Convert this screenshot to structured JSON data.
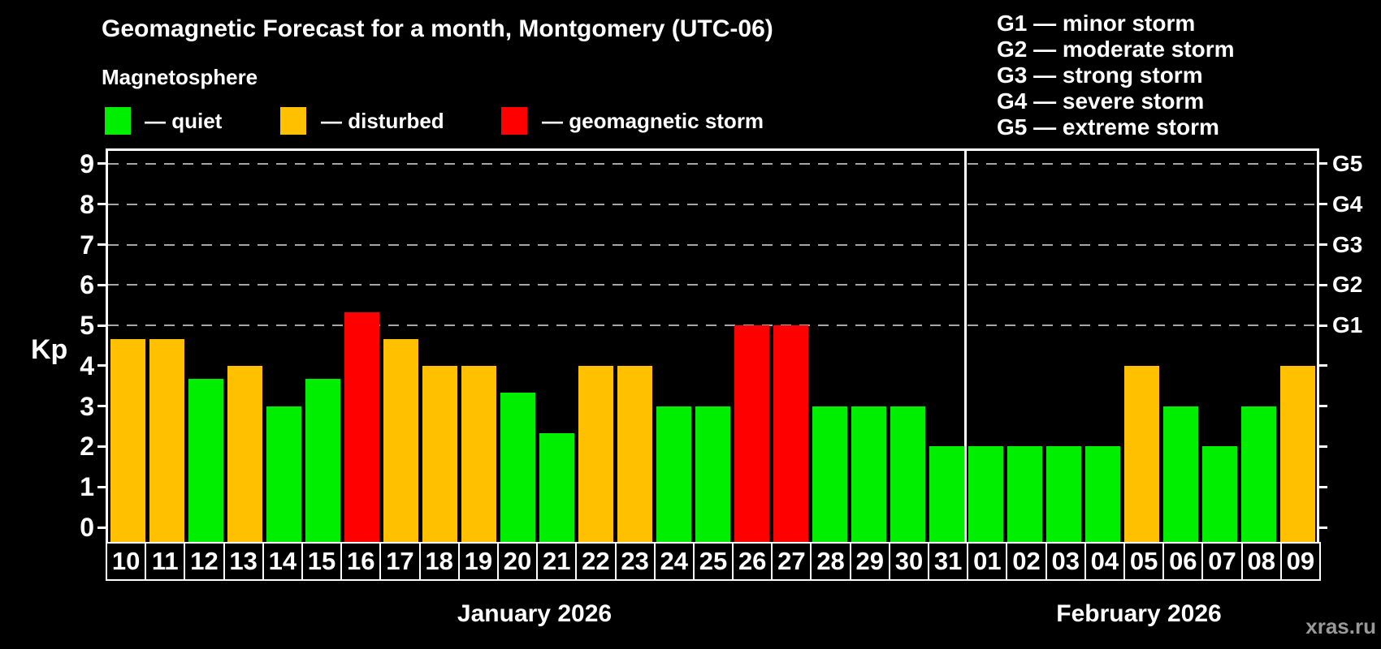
{
  "title": "Geomagnetic Forecast for a month, Montgomery (UTC-06)",
  "subtitle": "Magnetosphere",
  "watermark": "xras.ru",
  "colors": {
    "background": "#000000",
    "text": "#ffffff",
    "grid": "#a6a6a6",
    "axis": "#ffffff",
    "quiet": "#00ee00",
    "disturbed": "#ffc000",
    "storm": "#ff0000",
    "watermark": "#999999"
  },
  "legend": [
    {
      "label": "— quiet",
      "category": "quiet"
    },
    {
      "label": "— disturbed",
      "category": "disturbed"
    },
    {
      "label": "— geomagnetic storm",
      "category": "storm"
    }
  ],
  "g_scale_legend": [
    "G1 — minor storm",
    "G2 — moderate storm",
    "G3 — strong storm",
    "G4 — severe storm",
    "G5 — extreme storm"
  ],
  "chart_data": {
    "type": "bar",
    "title": "Geomagnetic Forecast for a month, Montgomery (UTC-06)",
    "ylabel": "Kp",
    "ylim": [
      -0.37,
      9.4
    ],
    "y_ticks": [
      0,
      1,
      2,
      3,
      4,
      5,
      6,
      7,
      8,
      9
    ],
    "gridlines_at": [
      5,
      6,
      7,
      8,
      9
    ],
    "grid": "dashed",
    "right_axis_labels": [
      {
        "kp": 5,
        "label": "G1"
      },
      {
        "kp": 6,
        "label": "G2"
      },
      {
        "kp": 7,
        "label": "G3"
      },
      {
        "kp": 8,
        "label": "G4"
      },
      {
        "kp": 9,
        "label": "G5"
      }
    ],
    "months": [
      {
        "label": "January 2026",
        "days": 22
      },
      {
        "label": "February 2026",
        "days": 9
      }
    ],
    "bars": [
      {
        "date": "10",
        "value": 4.67,
        "category": "disturbed"
      },
      {
        "date": "11",
        "value": 4.67,
        "category": "disturbed"
      },
      {
        "date": "12",
        "value": 3.67,
        "category": "quiet"
      },
      {
        "date": "13",
        "value": 4.0,
        "category": "disturbed"
      },
      {
        "date": "14",
        "value": 3.0,
        "category": "quiet"
      },
      {
        "date": "15",
        "value": 3.67,
        "category": "quiet"
      },
      {
        "date": "16",
        "value": 5.33,
        "category": "storm"
      },
      {
        "date": "17",
        "value": 4.67,
        "category": "disturbed"
      },
      {
        "date": "18",
        "value": 4.0,
        "category": "disturbed"
      },
      {
        "date": "19",
        "value": 4.0,
        "category": "disturbed"
      },
      {
        "date": "20",
        "value": 3.33,
        "category": "quiet"
      },
      {
        "date": "21",
        "value": 2.33,
        "category": "quiet"
      },
      {
        "date": "22",
        "value": 4.0,
        "category": "disturbed"
      },
      {
        "date": "23",
        "value": 4.0,
        "category": "disturbed"
      },
      {
        "date": "24",
        "value": 3.0,
        "category": "quiet"
      },
      {
        "date": "25",
        "value": 3.0,
        "category": "quiet"
      },
      {
        "date": "26",
        "value": 5.0,
        "category": "storm"
      },
      {
        "date": "27",
        "value": 5.0,
        "category": "storm"
      },
      {
        "date": "28",
        "value": 3.0,
        "category": "quiet"
      },
      {
        "date": "29",
        "value": 3.0,
        "category": "quiet"
      },
      {
        "date": "30",
        "value": 3.0,
        "category": "quiet"
      },
      {
        "date": "31",
        "value": 2.0,
        "category": "quiet"
      },
      {
        "date": "01",
        "value": 2.0,
        "category": "quiet"
      },
      {
        "date": "02",
        "value": 2.0,
        "category": "quiet"
      },
      {
        "date": "03",
        "value": 2.0,
        "category": "quiet"
      },
      {
        "date": "04",
        "value": 2.0,
        "category": "quiet"
      },
      {
        "date": "05",
        "value": 4.0,
        "category": "disturbed"
      },
      {
        "date": "06",
        "value": 3.0,
        "category": "quiet"
      },
      {
        "date": "07",
        "value": 2.0,
        "category": "quiet"
      },
      {
        "date": "08",
        "value": 3.0,
        "category": "quiet"
      },
      {
        "date": "09",
        "value": 4.0,
        "category": "disturbed"
      }
    ]
  }
}
